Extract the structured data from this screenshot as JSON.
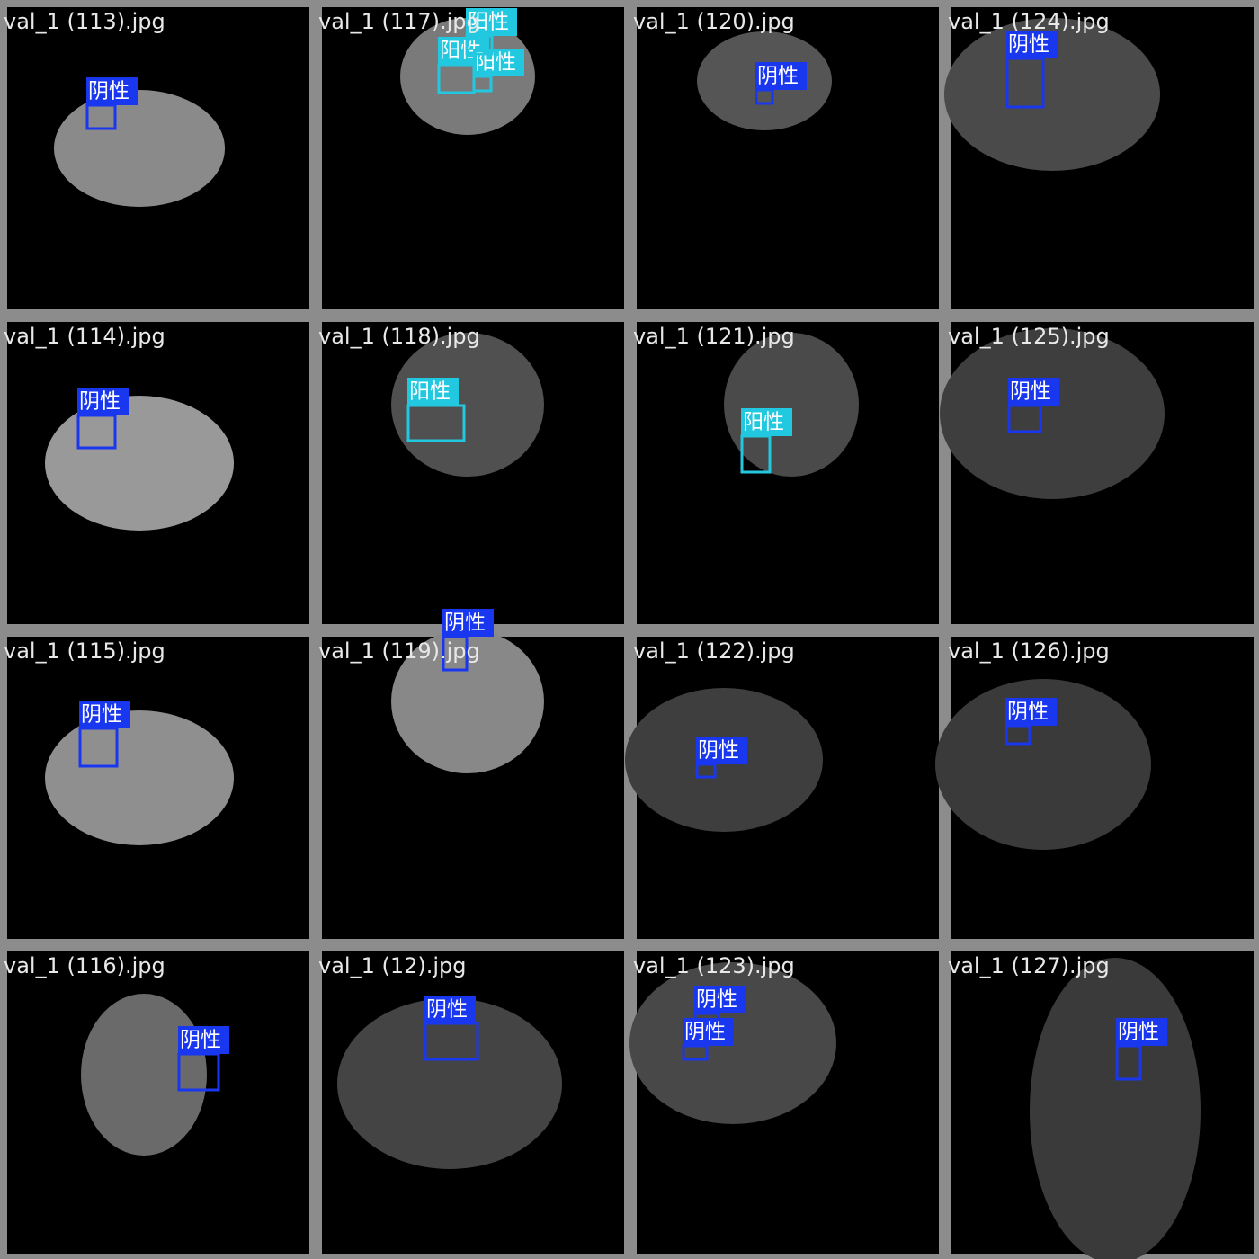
{
  "tiles": [
    {
      "filename": "val_1 (113).jpg",
      "detections": [
        {
          "label": "阴性",
          "color": "#1a37f0"
        }
      ]
    },
    {
      "filename": "val_1 (117).jpg",
      "detections": [
        {
          "label": "阳性",
          "color": "#22c8e0"
        },
        {
          "label": "阳性",
          "color": "#22c8e0"
        },
        {
          "label": "阳性",
          "color": "#22c8e0"
        }
      ]
    },
    {
      "filename": "val_1 (120).jpg",
      "detections": [
        {
          "label": "阴性",
          "color": "#1a37f0"
        }
      ]
    },
    {
      "filename": "val_1 (124).jpg",
      "detections": [
        {
          "label": "阴性",
          "color": "#1a37f0"
        }
      ]
    },
    {
      "filename": "val_1 (114).jpg",
      "detections": [
        {
          "label": "阴性",
          "color": "#1a37f0"
        }
      ]
    },
    {
      "filename": "val_1 (118).jpg",
      "detections": [
        {
          "label": "阳性",
          "color": "#22c8e0"
        }
      ]
    },
    {
      "filename": "val_1 (121).jpg",
      "detections": [
        {
          "label": "阳性",
          "color": "#22c8e0"
        }
      ]
    },
    {
      "filename": "val_1 (125).jpg",
      "detections": [
        {
          "label": "阴性",
          "color": "#1a37f0"
        }
      ]
    },
    {
      "filename": "val_1 (115).jpg",
      "detections": [
        {
          "label": "阴性",
          "color": "#1a37f0"
        }
      ]
    },
    {
      "filename": "val_1 (119).jpg",
      "detections": [
        {
          "label": "阴性",
          "color": "#1a37f0"
        }
      ]
    },
    {
      "filename": "val_1 (122).jpg",
      "detections": [
        {
          "label": "阴性",
          "color": "#1a37f0"
        }
      ]
    },
    {
      "filename": "val_1 (126).jpg",
      "detections": [
        {
          "label": "阴性",
          "color": "#1a37f0"
        }
      ]
    },
    {
      "filename": "val_1 (116).jpg",
      "detections": [
        {
          "label": "阴性",
          "color": "#1a37f0"
        }
      ]
    },
    {
      "filename": "val_1 (12).jpg",
      "detections": [
        {
          "label": "阴性",
          "color": "#1a37f0"
        }
      ]
    },
    {
      "filename": "val_1 (123).jpg",
      "detections": [
        {
          "label": "阴性",
          "color": "#1a37f0"
        },
        {
          "label": "阴性",
          "color": "#1a37f0"
        }
      ]
    },
    {
      "filename": "val_1 (127).jpg",
      "detections": [
        {
          "label": "阴性",
          "color": "#1a37f0"
        }
      ]
    }
  ]
}
